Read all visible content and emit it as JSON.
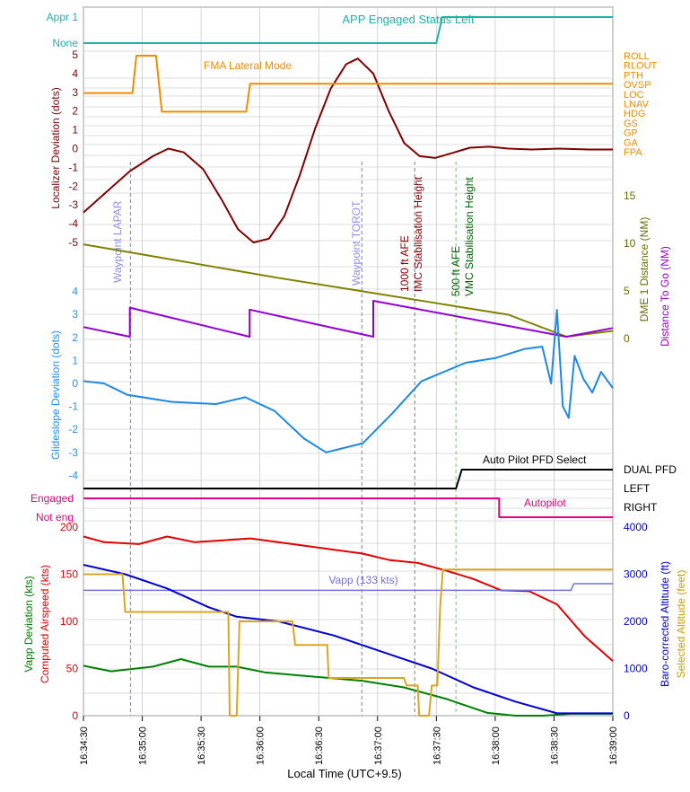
{
  "chart_data": {
    "type": "line",
    "xlabel": "Local Time (UTC+9.5)",
    "x_ticks": [
      "16:34:30",
      "16:35:00",
      "16:35:30",
      "16:36:00",
      "16:36:30",
      "16:37:00",
      "16:37:30",
      "16:38:00",
      "16:38:30",
      "16:39:00"
    ],
    "markers": [
      {
        "time": "16:34:54",
        "label": "Waypoint LAPAR",
        "color": "#8c8cf0"
      },
      {
        "time": "16:36:52",
        "label": "Waypoint TOROT",
        "color": "#8c8cf0"
      },
      {
        "time": "16:37:19",
        "label": "1000 ft AFE",
        "color": "#a0a0a0",
        "label_color": "#800000"
      },
      {
        "time": "16:37:19",
        "label": "IMC Stabilisation Height",
        "color": "#a0a0a0",
        "label_color": "#800000"
      },
      {
        "time": "16:37:40",
        "label": "500 ft AFE",
        "color": "#9ad39a",
        "label_color": "#006400"
      },
      {
        "time": "16:37:40",
        "label": "VMC Stabilisation Height",
        "color": "#9ad39a",
        "label_color": "#006400"
      }
    ],
    "panels": [
      {
        "id": "app_status",
        "left_ticks": [
          "None",
          "Appr 1"
        ],
        "series": [
          {
            "name": "APP Engaged Status Left",
            "color": "#20b2aa",
            "points": [
              [
                "16:34:30",
                "None"
              ],
              [
                "16:37:30",
                "None"
              ],
              [
                "16:37:33",
                "Appr 1"
              ],
              [
                "16:39:00",
                "Appr 1"
              ]
            ]
          }
        ]
      },
      {
        "id": "localizer",
        "ylabel": "Localizer Deviation (dots)",
        "ylabel_color": "#800000",
        "ylim": [
          -5,
          5
        ],
        "left_ticks": [
          "5",
          "4",
          "3",
          "2",
          "1",
          "0",
          "-1",
          "-2",
          "-3",
          "-4",
          "-5"
        ],
        "right_ticks": [
          "ROLL",
          "RLOUT",
          "PTH",
          "OVSP",
          "LOC",
          "LNAV",
          "HDG",
          "GS",
          "GP",
          "GA",
          "FPA"
        ],
        "series": [
          {
            "name": "Localizer Deviation",
            "color": "#800000",
            "points": [
              [
                0,
                -3.4
              ],
              [
                12,
                -2.3
              ],
              [
                24,
                -1.2
              ],
              [
                36,
                -0.4
              ],
              [
                44,
                0
              ],
              [
                52,
                -0.2
              ],
              [
                62,
                -1.1
              ],
              [
                72,
                -2.8
              ],
              [
                80,
                -4.3
              ],
              [
                88,
                -5.0
              ],
              [
                96,
                -4.8
              ],
              [
                104,
                -3.6
              ],
              [
                112,
                -1.4
              ],
              [
                120,
                1.1
              ],
              [
                128,
                3.2
              ],
              [
                136,
                4.5
              ],
              [
                142,
                4.8
              ],
              [
                150,
                4.0
              ],
              [
                158,
                2.0
              ],
              [
                166,
                0.3
              ],
              [
                174,
                -0.4
              ],
              [
                182,
                -0.5
              ],
              [
                192,
                -0.2
              ],
              [
                200,
                0.05
              ],
              [
                210,
                0.1
              ],
              [
                220,
                0.0
              ],
              [
                232,
                -0.05
              ],
              [
                246,
                0.0
              ],
              [
                262,
                -0.05
              ],
              [
                274,
                -0.05
              ]
            ]
          },
          {
            "name": "FMA Lateral Mode",
            "color": "#f08c00",
            "points": [
              [
                0,
                "LOC"
              ],
              [
                25,
                "LOC"
              ],
              [
                27,
                "ROLL"
              ],
              [
                37,
                "ROLL"
              ],
              [
                40,
                "HDG"
              ],
              [
                83,
                "HDG"
              ],
              [
                85,
                "OVSP"
              ],
              [
                270,
                "OVSP"
              ]
            ]
          }
        ]
      },
      {
        "id": "dme",
        "right_label": "DME 1 Distance (NM)",
        "right_label_color": "#6b6b00",
        "right_label2": "Distance To Go (NM)",
        "right_label2_color": "#9400d3",
        "ylim": [
          0,
          15
        ],
        "right_ticks": [
          "15",
          "10",
          "5",
          "0"
        ],
        "series": [
          {
            "name": "DME 1 Distance",
            "color": "#808000",
            "points": [
              [
                0,
                9.9
              ],
              [
                20,
                9.2
              ],
              [
                60,
                7.8
              ],
              [
                100,
                6.4
              ],
              [
                140,
                5.1
              ],
              [
                180,
                3.8
              ],
              [
                220,
                2.5
              ],
              [
                250,
                0.2
              ],
              [
                274,
                0.8
              ]
            ]
          },
          {
            "name": "Distance To Go",
            "color": "#9400d3",
            "points": [
              [
                0,
                1.0
              ],
              [
                24,
                0.0
              ],
              [
                24,
                3.0
              ],
              [
                86,
                0.0
              ],
              [
                86,
                2.8
              ],
              [
                150,
                0.0
              ],
              [
                150,
                3.7
              ],
              [
                250,
                0.0
              ],
              [
                274,
                0.9
              ]
            ]
          }
        ]
      },
      {
        "id": "glideslope",
        "ylabel": "Glideslope Deviation (dots)",
        "ylabel_color": "#1e90ff",
        "ylim": [
          -4,
          4
        ],
        "left_ticks": [
          "4",
          "3",
          "2",
          "1",
          "0",
          "-1",
          "-2",
          "-3",
          "-4"
        ],
        "series": [
          {
            "name": "Glideslope Deviation",
            "color": "#1e88e5",
            "points": [
              [
                0,
                0.1
              ],
              [
                14,
                0.0
              ],
              [
                30,
                -0.5
              ],
              [
                60,
                -0.8
              ],
              [
                90,
                -0.9
              ],
              [
                110,
                -0.6
              ],
              [
                130,
                -1.2
              ],
              [
                150,
                -2.4
              ],
              [
                165,
                -3.0
              ],
              [
                190,
                -2.6
              ],
              [
                210,
                -1.3
              ],
              [
                230,
                0.1
              ],
              [
                260,
                0.9
              ],
              [
                280,
                1.1
              ],
              [
                300,
                1.5
              ],
              [
                312,
                1.6
              ],
              [
                318,
                0.0
              ],
              [
                322,
                3.2
              ],
              [
                326,
                -1.0
              ],
              [
                330,
                -1.5
              ],
              [
                334,
                1.2
              ],
              [
                340,
                0.2
              ],
              [
                346,
                -0.4
              ],
              [
                352,
                0.5
              ],
              [
                360,
                -0.2
              ]
            ]
          }
        ]
      },
      {
        "id": "ap_pfd",
        "right_ticks": [
          "DUAL PFD",
          "LEFT",
          "RIGHT"
        ],
        "series": [
          {
            "name": "Auto Pilot PFD Select",
            "color": "#000000",
            "points": [
              [
                "16:34:30",
                "LEFT"
              ],
              [
                "16:37:40",
                "LEFT"
              ],
              [
                "16:37:43",
                "DUAL PFD"
              ],
              [
                "16:39:00",
                "DUAL PFD"
              ]
            ]
          }
        ]
      },
      {
        "id": "autopilot",
        "left_ticks": [
          "Engaged",
          "Not eng"
        ],
        "left_ticks_color": "#e6007e",
        "series": [
          {
            "name": "Autopilot",
            "color": "#e6007e",
            "points": [
              [
                "16:34:30",
                "Engaged"
              ],
              [
                "16:38:02",
                "Engaged"
              ],
              [
                "16:38:02",
                "Not eng"
              ],
              [
                "16:39:00",
                "Not eng"
              ]
            ]
          }
        ]
      },
      {
        "id": "speed_alt",
        "ylabel": "Computed Airspeed (kts)",
        "ylabel_color": "#e00000",
        "ylabel2": "Vapp Deviation (kts)",
        "ylabel2_color": "#008000",
        "right_label": "Baro-corrected Altitude (ft)",
        "right_label_color": "#0000cd",
        "right_label2": "Selected Altitude (feet)",
        "right_label2_color": "#c8a000",
        "ylim": [
          0,
          200
        ],
        "left_ticks": [
          "200",
          "150",
          "100",
          "50",
          "0"
        ],
        "right_ticks": [
          "4000",
          "3000",
          "2000",
          "1000",
          "0"
        ],
        "vapp_label": "Vapp (133 kts)",
        "vapp_label_color": "#7070e0",
        "series": [
          {
            "name": "Computed Airspeed",
            "color": "#e00000",
            "points": [
              [
                0,
                190
              ],
              [
                15,
                184
              ],
              [
                40,
                182
              ],
              [
                60,
                190
              ],
              [
                80,
                184
              ],
              [
                100,
                186
              ],
              [
                120,
                188
              ],
              [
                160,
                180
              ],
              [
                180,
                176
              ],
              [
                200,
                172
              ],
              [
                220,
                165
              ],
              [
                240,
                162
              ],
              [
                260,
                154
              ],
              [
                280,
                145
              ],
              [
                300,
                133
              ],
              [
                320,
                132
              ],
              [
                340,
                118
              ],
              [
                360,
                84
              ],
              [
                380,
                58
              ]
            ]
          },
          {
            "name": "Vapp Deviation",
            "color": "#008000",
            "points": [
              [
                0,
                53
              ],
              [
                20,
                47
              ],
              [
                50,
                52
              ],
              [
                70,
                60
              ],
              [
                90,
                52
              ],
              [
                110,
                52
              ],
              [
                130,
                46
              ],
              [
                160,
                42
              ],
              [
                200,
                37
              ],
              [
                230,
                30
              ],
              [
                260,
                18
              ],
              [
                290,
                3
              ],
              [
                310,
                0
              ],
              [
                330,
                0
              ],
              [
                350,
                2
              ],
              [
                380,
                2
              ]
            ]
          },
          {
            "name": "Vapp",
            "color": "#7070e0",
            "points": [
              [
                0,
                133
              ],
              [
                350,
                133
              ],
              [
                352,
                140
              ],
              [
                380,
                140
              ]
            ]
          },
          {
            "name": "Baro-corrected Altitude",
            "color": "#0000cd",
            "points": [
              [
                0,
                3200
              ],
              [
                30,
                3000
              ],
              [
                60,
                2700
              ],
              [
                90,
                2300
              ],
              [
                110,
                2100
              ],
              [
                140,
                2000
              ],
              [
                180,
                1700
              ],
              [
                220,
                1300
              ],
              [
                250,
                1000
              ],
              [
                280,
                600
              ],
              [
                310,
                300
              ],
              [
                340,
                50
              ],
              [
                380,
                50
              ]
            ]
          },
          {
            "name": "Selected Altitude",
            "color": "#daa520",
            "points": [
              [
                0,
                3000
              ],
              [
                28,
                3000
              ],
              [
                30,
                2200
              ],
              [
                104,
                2200
              ],
              [
                105,
                0
              ],
              [
                110,
                0
              ],
              [
                112,
                2000
              ],
              [
                150,
                2000
              ],
              [
                152,
                1500
              ],
              [
                175,
                1500
              ],
              [
                176,
                800
              ],
              [
                230,
                800
              ],
              [
                232,
                640
              ],
              [
                240,
                640
              ],
              [
                241,
                0
              ],
              [
                248,
                0
              ],
              [
                250,
                640
              ],
              [
                254,
                640
              ],
              [
                256,
                2300
              ],
              [
                258,
                3100
              ],
              [
                380,
                3100
              ]
            ]
          }
        ]
      }
    ],
    "text_labels": {
      "app_status_series": "APP Engaged Status Left",
      "fma_series": "FMA Lateral Mode",
      "ap_pfd_series": "Auto Pilot PFD Select",
      "autopilot_series": "Autopilot"
    }
  }
}
